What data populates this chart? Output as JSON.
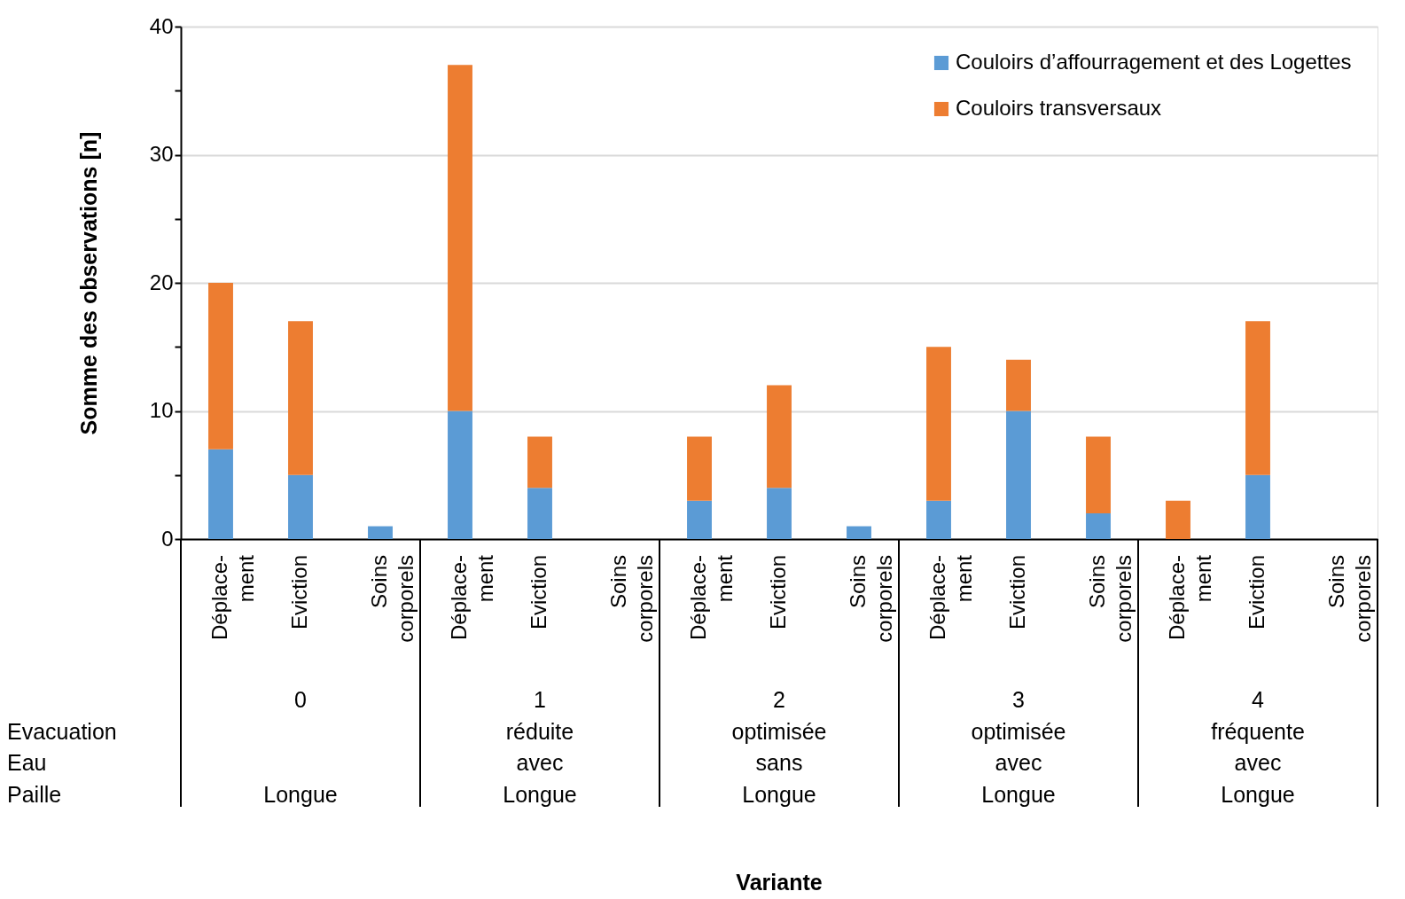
{
  "chart_data": {
    "type": "bar",
    "stacked": true,
    "ylabel": "Somme des observations [n]",
    "categories": [
      "Déplace-\nment",
      "Eviction",
      "Soins\ncorporels",
      "Déplace-\nment",
      "Eviction",
      "Soins\ncorporels",
      "Déplace-\nment",
      "Eviction",
      "Soins\ncorporels",
      "Déplace-\nment",
      "Eviction",
      "Soins\ncorporels",
      "Déplace-\nment",
      "Eviction",
      "Soins\ncorporels"
    ],
    "series": [
      {
        "name": "Couloirs d’affourragement et des Logettes",
        "color": "#5b9bd5",
        "values": [
          7,
          5,
          1,
          10,
          4,
          0,
          3,
          4,
          1,
          3,
          10,
          2,
          0,
          5,
          0
        ]
      },
      {
        "name": "Couloirs transversaux",
        "color": "#ed7d31",
        "values": [
          13,
          12,
          0,
          27,
          4,
          0,
          5,
          8,
          0,
          12,
          4,
          6,
          3,
          12,
          0
        ]
      }
    ],
    "ylim": [
      0,
      40
    ],
    "yticks": [
      0,
      {
        "value": 5,
        "label": null
      },
      10,
      {
        "value": 15,
        "label": null
      },
      20,
      {
        "value": 25,
        "label": null
      },
      30,
      {
        "value": 35,
        "label": null
      },
      40
    ],
    "grid": "y",
    "legend": "top right",
    "annotations": [
      "Evacuation\nEau\nPaille",
      "0\n\n\nLongue",
      "1\nréduite\navec\nLongue",
      "2\noptimisée\nsans\nLongue",
      "3\noptimisée\navec\nLongue",
      "4\nfréquente\navec\nLongue",
      "Variante"
    ]
  }
}
